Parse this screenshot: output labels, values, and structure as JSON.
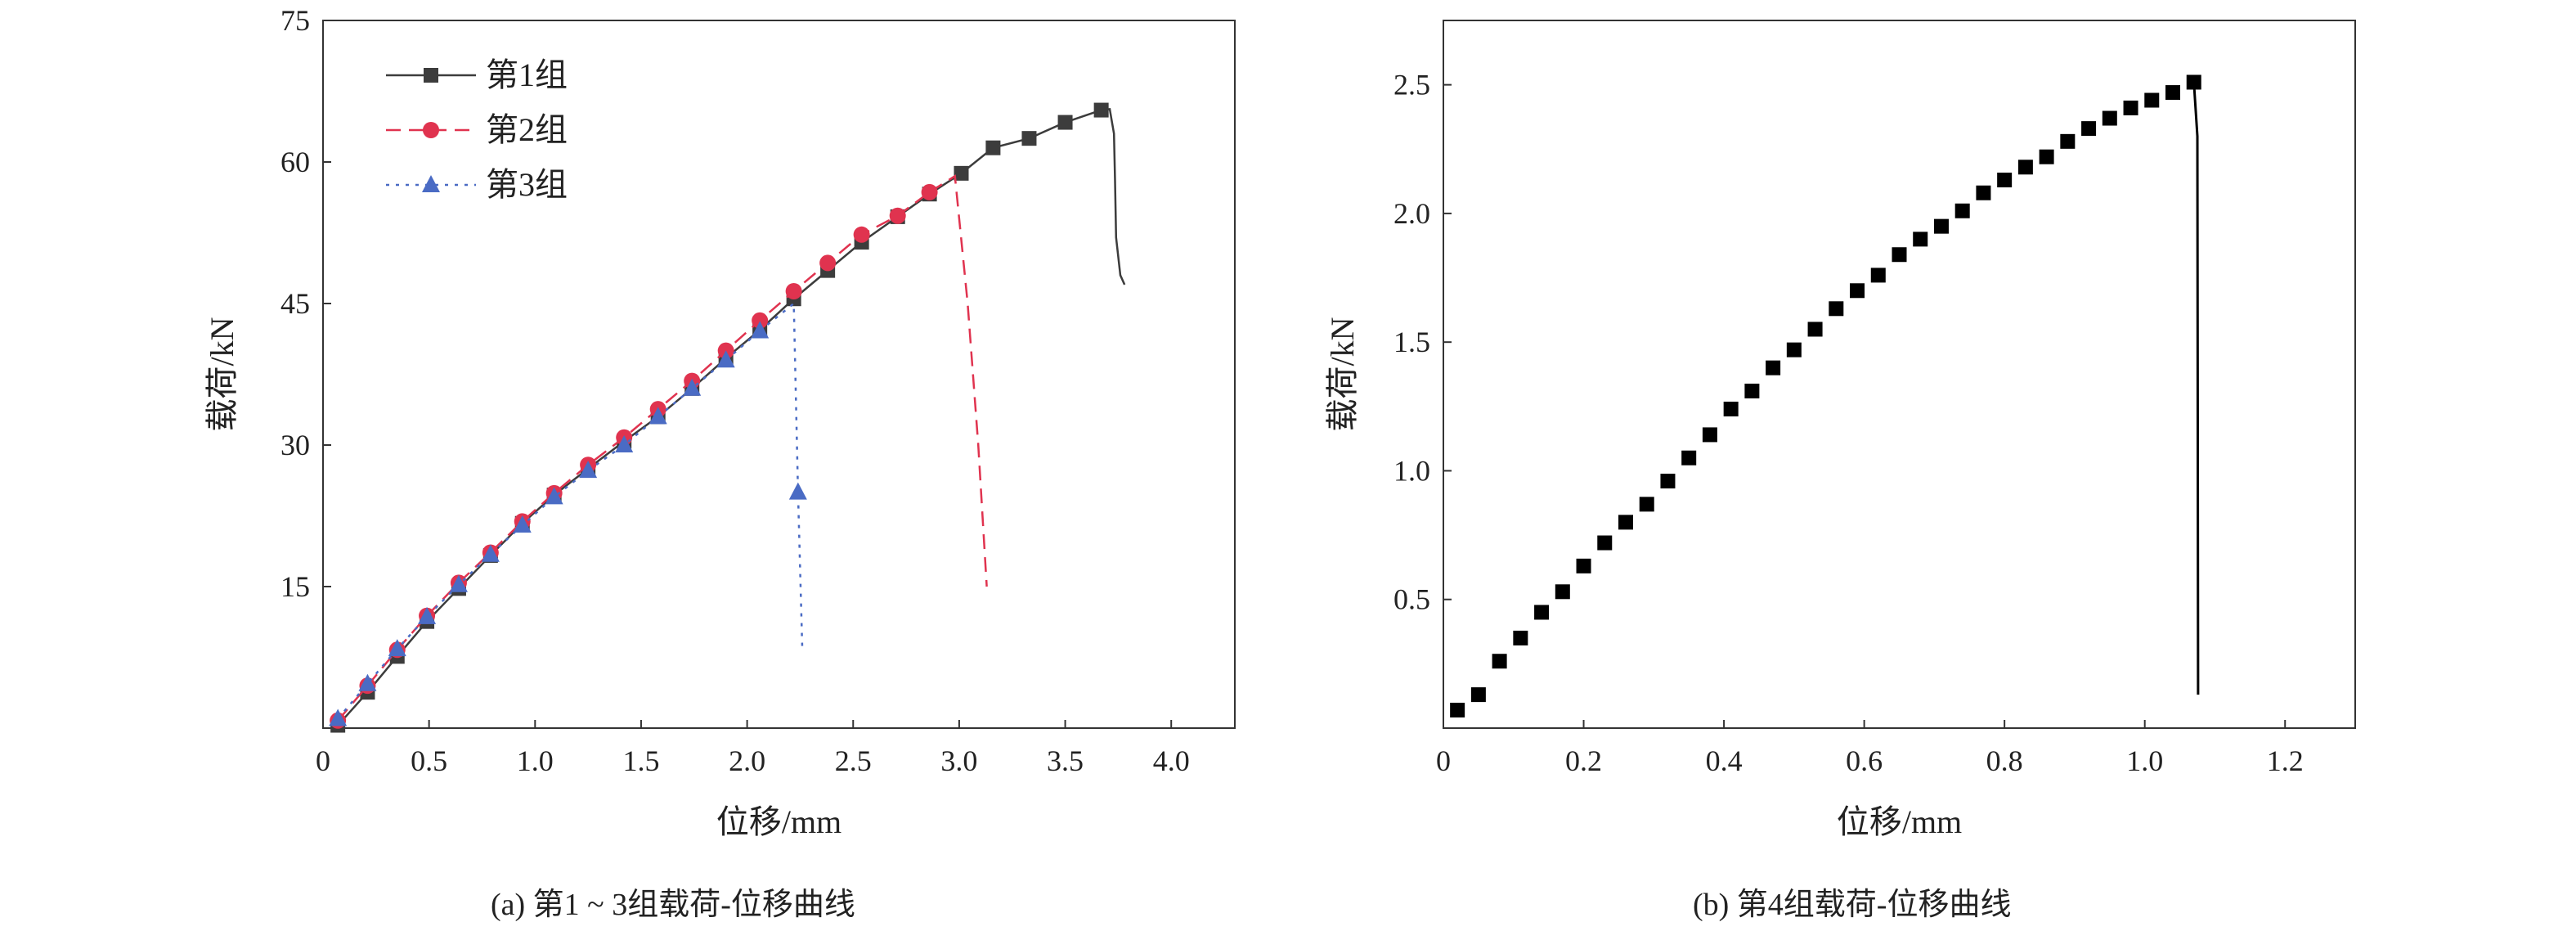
{
  "captions": {
    "a": "(a) 第1 ~ 3组载荷-位移曲线",
    "b": "(b) 第4组载荷-位移曲线"
  },
  "colors": {
    "series1": "#3c3c3c",
    "series2": "#e0334f",
    "series3": "#4a6bc4",
    "series4": "#000000",
    "axis": "#333333"
  },
  "chart_data": [
    {
      "type": "line",
      "caption": "(a) 第1 ~ 3组载荷-位移曲线",
      "xlabel": "位移/mm",
      "ylabel": "载荷/kN",
      "xlim": [
        0,
        4.3
      ],
      "ylim": [
        0,
        75
      ],
      "xticks": [
        0,
        0.5,
        1.0,
        1.5,
        2.0,
        2.5,
        3.0,
        3.5,
        4.0
      ],
      "xtick_labels": [
        "0",
        "0.5",
        "1.0",
        "1.5",
        "2.0",
        "2.5",
        "3.0",
        "3.5",
        "4.0"
      ],
      "yticks": [
        15,
        30,
        45,
        60,
        75
      ],
      "ytick_labels": [
        "15",
        "30",
        "45",
        "60",
        "75"
      ],
      "grid": false,
      "legend_position": "top-left",
      "series": [
        {
          "name": "第1组",
          "marker": "square",
          "line": "solid",
          "points": [
            [
              0.07,
              0.3
            ],
            [
              0.21,
              3.8
            ],
            [
              0.35,
              7.6
            ],
            [
              0.49,
              11.3
            ],
            [
              0.64,
              14.8
            ],
            [
              0.79,
              18.3
            ],
            [
              0.94,
              21.7
            ],
            [
              1.09,
              24.7
            ],
            [
              1.25,
              27.5
            ],
            [
              1.42,
              30.4
            ],
            [
              1.58,
              33.0
            ],
            [
              1.74,
              36.0
            ],
            [
              1.9,
              39.2
            ],
            [
              2.06,
              42.2
            ],
            [
              2.22,
              45.5
            ],
            [
              2.38,
              48.5
            ],
            [
              2.54,
              51.5
            ],
            [
              2.71,
              54.2
            ],
            [
              2.86,
              56.6
            ],
            [
              3.01,
              58.8
            ],
            [
              3.16,
              61.5
            ],
            [
              3.33,
              62.5
            ],
            [
              3.5,
              64.2
            ],
            [
              3.67,
              65.5
            ]
          ],
          "tail": [
            [
              3.67,
              65.5
            ],
            [
              3.71,
              65.6
            ],
            [
              3.73,
              63
            ],
            [
              3.735,
              58
            ],
            [
              3.74,
              52
            ],
            [
              3.76,
              48
            ],
            [
              3.78,
              47
            ]
          ]
        },
        {
          "name": "第2组",
          "marker": "circle",
          "line": "dashed",
          "points": [
            [
              0.07,
              0.8
            ],
            [
              0.21,
              4.5
            ],
            [
              0.35,
              8.3
            ],
            [
              0.49,
              11.9
            ],
            [
              0.64,
              15.4
            ],
            [
              0.79,
              18.6
            ],
            [
              0.94,
              21.9
            ],
            [
              1.09,
              24.9
            ],
            [
              1.25,
              27.9
            ],
            [
              1.42,
              30.8
            ],
            [
              1.58,
              33.8
            ],
            [
              1.74,
              36.8
            ],
            [
              1.9,
              40.0
            ],
            [
              2.06,
              43.2
            ],
            [
              2.22,
              46.3
            ],
            [
              2.38,
              49.3
            ],
            [
              2.54,
              52.3
            ],
            [
              2.71,
              54.3
            ],
            [
              2.86,
              56.8
            ]
          ],
          "tail": [
            [
              2.86,
              56.8
            ],
            [
              2.98,
              58.5
            ],
            [
              3.04,
              45
            ],
            [
              3.09,
              30
            ],
            [
              3.13,
              15
            ]
          ]
        },
        {
          "name": "第3组",
          "marker": "triangle",
          "line": "dotted",
          "points": [
            [
              0.07,
              1.0
            ],
            [
              0.21,
              4.7
            ],
            [
              0.35,
              8.4
            ],
            [
              0.49,
              11.8
            ],
            [
              0.64,
              15.2
            ],
            [
              0.79,
              18.4
            ],
            [
              0.94,
              21.5
            ],
            [
              1.09,
              24.5
            ],
            [
              1.25,
              27.3
            ],
            [
              1.42,
              30.0
            ],
            [
              1.58,
              33.0
            ],
            [
              1.74,
              36.0
            ],
            [
              1.9,
              39.0
            ],
            [
              2.06,
              42.1
            ],
            [
              2.24,
              25.0
            ]
          ],
          "tail": [
            [
              2.06,
              42.1
            ],
            [
              2.22,
              45.0
            ],
            [
              2.24,
              25.0
            ],
            [
              2.26,
              8.5
            ]
          ]
        }
      ]
    },
    {
      "type": "scatter",
      "caption": "(b) 第4组载荷-位移曲线",
      "xlabel": "位移/mm",
      "ylabel": "载荷/kN",
      "xlim": [
        0,
        1.3
      ],
      "ylim": [
        0,
        2.75
      ],
      "xticks": [
        0,
        0.2,
        0.4,
        0.6,
        0.8,
        1.0,
        1.2
      ],
      "xtick_labels": [
        "0",
        "0.2",
        "0.4",
        "0.6",
        "0.8",
        "1.0",
        "1.2"
      ],
      "yticks": [
        0.5,
        1.0,
        1.5,
        2.0,
        2.5
      ],
      "ytick_labels": [
        "0.5",
        "1.0",
        "1.5",
        "2.0",
        "2.5"
      ],
      "grid": false,
      "series": [
        {
          "marker": "square",
          "points": [
            [
              0.02,
              0.07
            ],
            [
              0.05,
              0.13
            ],
            [
              0.08,
              0.26
            ],
            [
              0.11,
              0.35
            ],
            [
              0.14,
              0.45
            ],
            [
              0.17,
              0.53
            ],
            [
              0.2,
              0.63
            ],
            [
              0.23,
              0.72
            ],
            [
              0.26,
              0.8
            ],
            [
              0.29,
              0.87
            ],
            [
              0.32,
              0.96
            ],
            [
              0.35,
              1.05
            ],
            [
              0.38,
              1.14
            ],
            [
              0.41,
              1.24
            ],
            [
              0.44,
              1.31
            ],
            [
              0.47,
              1.4
            ],
            [
              0.5,
              1.47
            ],
            [
              0.53,
              1.55
            ],
            [
              0.56,
              1.63
            ],
            [
              0.59,
              1.7
            ],
            [
              0.62,
              1.76
            ],
            [
              0.65,
              1.84
            ],
            [
              0.68,
              1.9
            ],
            [
              0.71,
              1.95
            ],
            [
              0.74,
              2.01
            ],
            [
              0.77,
              2.08
            ],
            [
              0.8,
              2.13
            ],
            [
              0.83,
              2.18
            ],
            [
              0.86,
              2.22
            ],
            [
              0.89,
              2.28
            ],
            [
              0.92,
              2.33
            ],
            [
              0.95,
              2.37
            ],
            [
              0.98,
              2.41
            ],
            [
              1.01,
              2.44
            ],
            [
              1.04,
              2.47
            ],
            [
              1.07,
              2.51
            ]
          ],
          "drop": [
            [
              1.07,
              2.51
            ],
            [
              1.075,
              2.3
            ],
            [
              1.076,
              0.13
            ]
          ]
        }
      ]
    }
  ]
}
